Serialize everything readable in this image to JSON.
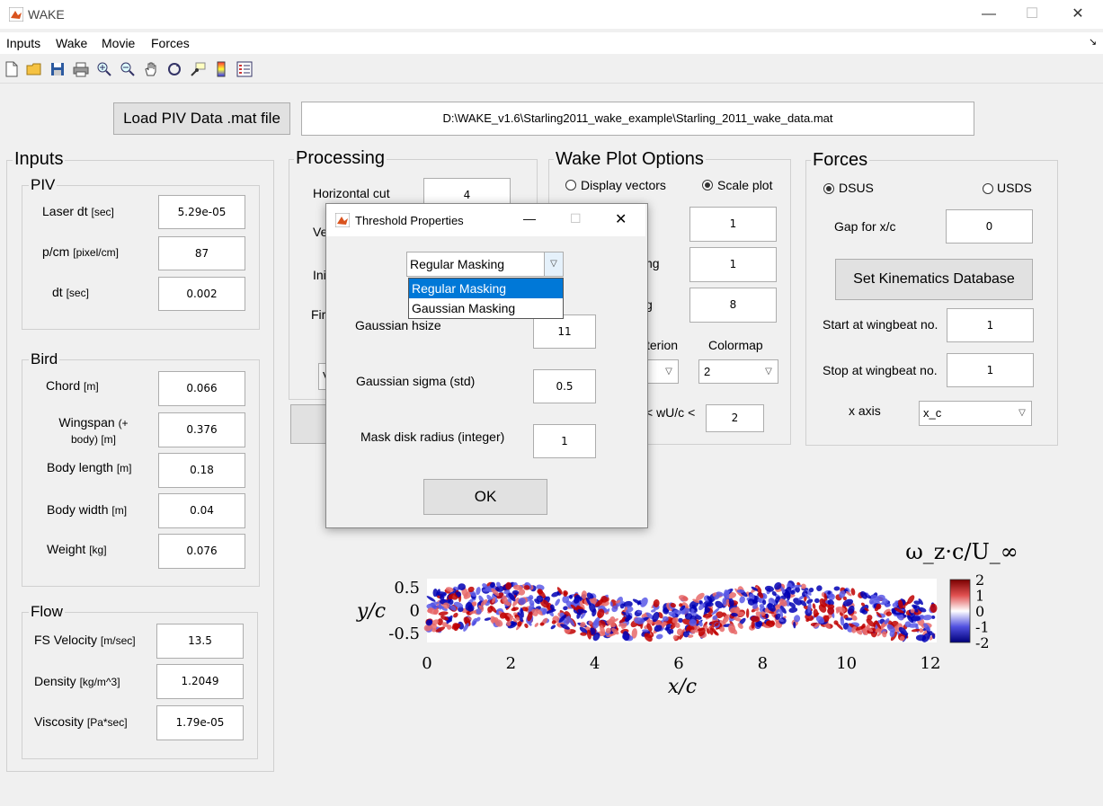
{
  "app": {
    "title": "WAKE"
  },
  "menu": [
    "Inputs",
    "Wake",
    "Movie",
    "Forces"
  ],
  "toolbar_icons": [
    "new-file-icon",
    "open-folder-icon",
    "save-icon",
    "print-icon",
    "zoom-in-icon",
    "zoom-out-icon",
    "pan-hand-icon",
    "rotate-icon",
    "data-cursor-icon",
    "colorbar-icon",
    "legend-icon"
  ],
  "load": {
    "button_label": "Load PIV Data .mat file",
    "path": "D:\\WAKE_v1.6\\Starling2011_wake_example\\Starling_2011_wake_data.mat"
  },
  "inputs": {
    "title": "Inputs",
    "piv": {
      "title": "PIV",
      "items": [
        {
          "label": "Laser dt",
          "unit": "[sec]",
          "value": "5.29e-05"
        },
        {
          "label": "p/cm",
          "unit": "[pixel/cm]",
          "value": "87"
        },
        {
          "label": "dt",
          "unit": "[sec]",
          "value": "0.002"
        }
      ]
    },
    "bird": {
      "title": "Bird",
      "items": [
        {
          "label": "Chord",
          "unit": "[m]",
          "value": "0.066"
        },
        {
          "label": "Wingspan",
          "unit": "(+ body) [m]",
          "value": "0.376"
        },
        {
          "label": "Body length",
          "unit": "[m]",
          "value": "0.18"
        },
        {
          "label": "Body width",
          "unit": "[m]",
          "value": "0.04"
        },
        {
          "label": "Weight",
          "unit": "[kg]",
          "value": "0.076"
        }
      ]
    },
    "flow": {
      "title": "Flow",
      "items": [
        {
          "label": "FS Velocity",
          "unit": "[m/sec]",
          "value": "13.5"
        },
        {
          "label": "Density",
          "unit": "[kg/m^3]",
          "value": "1.2049"
        },
        {
          "label": "Viscosity",
          "unit": "[Pa*sec]",
          "value": "1.79e-05"
        }
      ]
    }
  },
  "processing": {
    "title": "Processing",
    "horizontal_cut_label": "Horizontal cut",
    "horizontal_cut_value": "4",
    "ve_partial": "Ve",
    "ini_partial": "Ini",
    "fir_partial": "Fir",
    "v_partial": "V"
  },
  "wake_plot": {
    "title": "Wake Plot Options",
    "display_vectors": "Display vectors",
    "scale_plot": "Scale plot",
    "field_values": [
      "1",
      "1",
      "8"
    ],
    "ng_partial": "ng",
    "g_partial": "g",
    "criterion_partial": "terion",
    "colormap_label": "Colormap",
    "colormap_value": "2",
    "wu_partial": "< wU/c <",
    "wu_value": "2"
  },
  "forces": {
    "title": "Forces",
    "dsus": "DSUS",
    "usds": "USDS",
    "gap_label": "Gap for x/c",
    "gap_value": "0",
    "kin_button": "Set Kinematics Database",
    "start_label": "Start at wingbeat no.",
    "start_value": "1",
    "stop_label": "Stop at wingbeat no.",
    "stop_value": "1",
    "xaxis_label": "x axis",
    "xaxis_value": "x_c"
  },
  "dialog": {
    "title": "Threshold Properties",
    "select_value": "Regular Masking",
    "options": [
      "Regular Masking",
      "Gaussian Masking"
    ],
    "hsize_label": "Gaussian hsize",
    "hsize_value": "11",
    "sigma_label": "Gaussian sigma (std)",
    "sigma_value": "0.5",
    "disk_label": "Mask disk radius (integer)",
    "disk_value": "1",
    "ok": "OK"
  },
  "chart_data": {
    "type": "heatmap",
    "title": "ω_z·c/U_∞",
    "xlabel": "x/c",
    "ylabel": "y/c",
    "xlim": [
      0,
      12.2
    ],
    "ylim": [
      -0.7,
      0.7
    ],
    "x_ticks": [
      "0",
      "2",
      "4",
      "6",
      "8",
      "10",
      "12"
    ],
    "y_ticks": [
      "0.5",
      "0",
      "-0.5"
    ],
    "colorbar_ticks": [
      "2",
      "1",
      "0",
      "-1",
      "-2"
    ],
    "clim": [
      -2,
      2
    ],
    "colors": {
      "positive": "#c00000",
      "zero": "#ffffff",
      "negative": "#0000b4"
    }
  }
}
